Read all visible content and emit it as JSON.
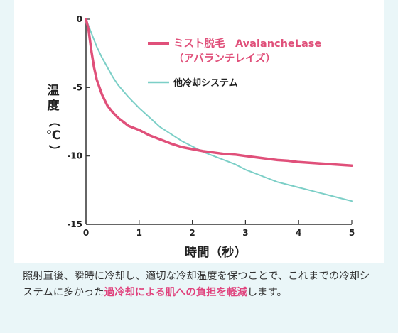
{
  "chart_data": {
    "type": "line",
    "ylabel": "温度（℃）",
    "xlabel": "時間（秒）",
    "xlim": [
      0,
      5
    ],
    "ylim": [
      -15,
      0
    ],
    "x_ticks": [
      "0",
      "1",
      "2",
      "3",
      "4",
      "5"
    ],
    "y_ticks": [
      "0",
      "-5",
      "-10",
      "-15"
    ],
    "grid": false,
    "legend_position": "top-right",
    "series": [
      {
        "name": "ミスト脱毛　AvalancheLase",
        "name_line2": "（アバランチレイズ）",
        "color": "#e0507a",
        "x": [
          0,
          0.05,
          0.1,
          0.15,
          0.2,
          0.3,
          0.4,
          0.5,
          0.6,
          0.8,
          1.0,
          1.2,
          1.4,
          1.6,
          1.8,
          2.0,
          2.2,
          2.4,
          2.6,
          2.8,
          3.0,
          3.2,
          3.4,
          3.6,
          3.8,
          4.0,
          4.2,
          4.4,
          4.6,
          4.8,
          5.0
        ],
        "y": [
          0,
          -0.8,
          -2.3,
          -3.5,
          -4.4,
          -5.5,
          -6.3,
          -6.8,
          -7.2,
          -7.8,
          -8.1,
          -8.5,
          -8.8,
          -9.1,
          -9.35,
          -9.5,
          -9.65,
          -9.75,
          -9.85,
          -9.9,
          -10.0,
          -10.1,
          -10.2,
          -10.3,
          -10.35,
          -10.45,
          -10.5,
          -10.55,
          -10.6,
          -10.65,
          -10.7
        ]
      },
      {
        "name": "他冷却システム",
        "color": "#7ccfc7",
        "x": [
          0,
          0.1,
          0.2,
          0.3,
          0.4,
          0.5,
          0.6,
          0.8,
          1.0,
          1.2,
          1.4,
          1.6,
          1.8,
          2.0,
          2.2,
          2.4,
          2.6,
          2.8,
          3.0,
          3.2,
          3.4,
          3.6,
          3.8,
          4.0,
          4.2,
          4.4,
          4.6,
          4.8,
          5.0
        ],
        "y": [
          0,
          -1.0,
          -2.0,
          -2.8,
          -3.5,
          -4.2,
          -4.8,
          -5.7,
          -6.5,
          -7.2,
          -7.9,
          -8.4,
          -8.9,
          -9.3,
          -9.7,
          -10.0,
          -10.3,
          -10.6,
          -11.0,
          -11.3,
          -11.6,
          -11.9,
          -12.1,
          -12.3,
          -12.5,
          -12.7,
          -12.9,
          -13.1,
          -13.3
        ]
      }
    ]
  },
  "caption": {
    "text1": "照射直後、瞬時に冷却し、適切な冷却温度を保つことで、これまでの冷却システムに多かった",
    "highlight": "過冷却による肌への負担を軽減",
    "text2": "します。"
  }
}
